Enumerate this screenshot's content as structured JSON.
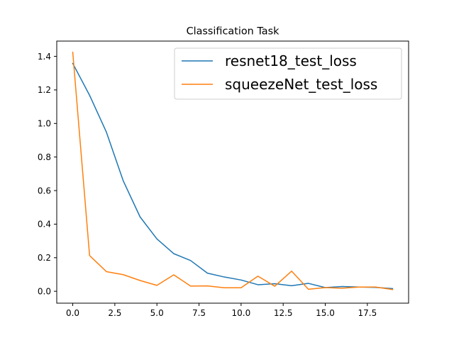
{
  "chart_data": {
    "type": "line",
    "title": "Classification Task",
    "xlabel": "",
    "ylabel": "",
    "xlim": [
      -0.95,
      19.95
    ],
    "ylim": [
      -0.071,
      1.491
    ],
    "xticks": [
      0,
      2.5,
      5,
      7.5,
      10,
      12.5,
      15,
      17.5
    ],
    "xtick_labels": [
      "0.0",
      "2.5",
      "5.0",
      "7.5",
      "10.0",
      "12.5",
      "15.0",
      "17.5"
    ],
    "yticks": [
      0,
      0.2,
      0.4,
      0.6,
      0.8,
      1.0,
      1.2,
      1.4
    ],
    "ytick_labels": [
      "0.0",
      "0.2",
      "0.4",
      "0.6",
      "0.8",
      "1.0",
      "1.2",
      "1.4"
    ],
    "grid": false,
    "legend_position": "top-right",
    "x": [
      0,
      1,
      2,
      3,
      4,
      5,
      6,
      7,
      8,
      9,
      10,
      11,
      12,
      13,
      14,
      15,
      16,
      17,
      18,
      19
    ],
    "series": [
      {
        "name": "resnet18_test_loss",
        "color": "#1f77b4",
        "values": [
          1.358,
          1.168,
          0.948,
          0.658,
          0.443,
          0.312,
          0.224,
          0.183,
          0.108,
          0.085,
          0.067,
          0.039,
          0.045,
          0.033,
          0.047,
          0.022,
          0.028,
          0.025,
          0.023,
          0.016
        ]
      },
      {
        "name": "squeezeNet_test_loss",
        "color": "#ff7f0e",
        "values": [
          1.425,
          0.213,
          0.117,
          0.099,
          0.064,
          0.035,
          0.098,
          0.031,
          0.032,
          0.021,
          0.021,
          0.09,
          0.03,
          0.12,
          0.012,
          0.022,
          0.018,
          0.025,
          0.025,
          0.01
        ]
      }
    ]
  }
}
